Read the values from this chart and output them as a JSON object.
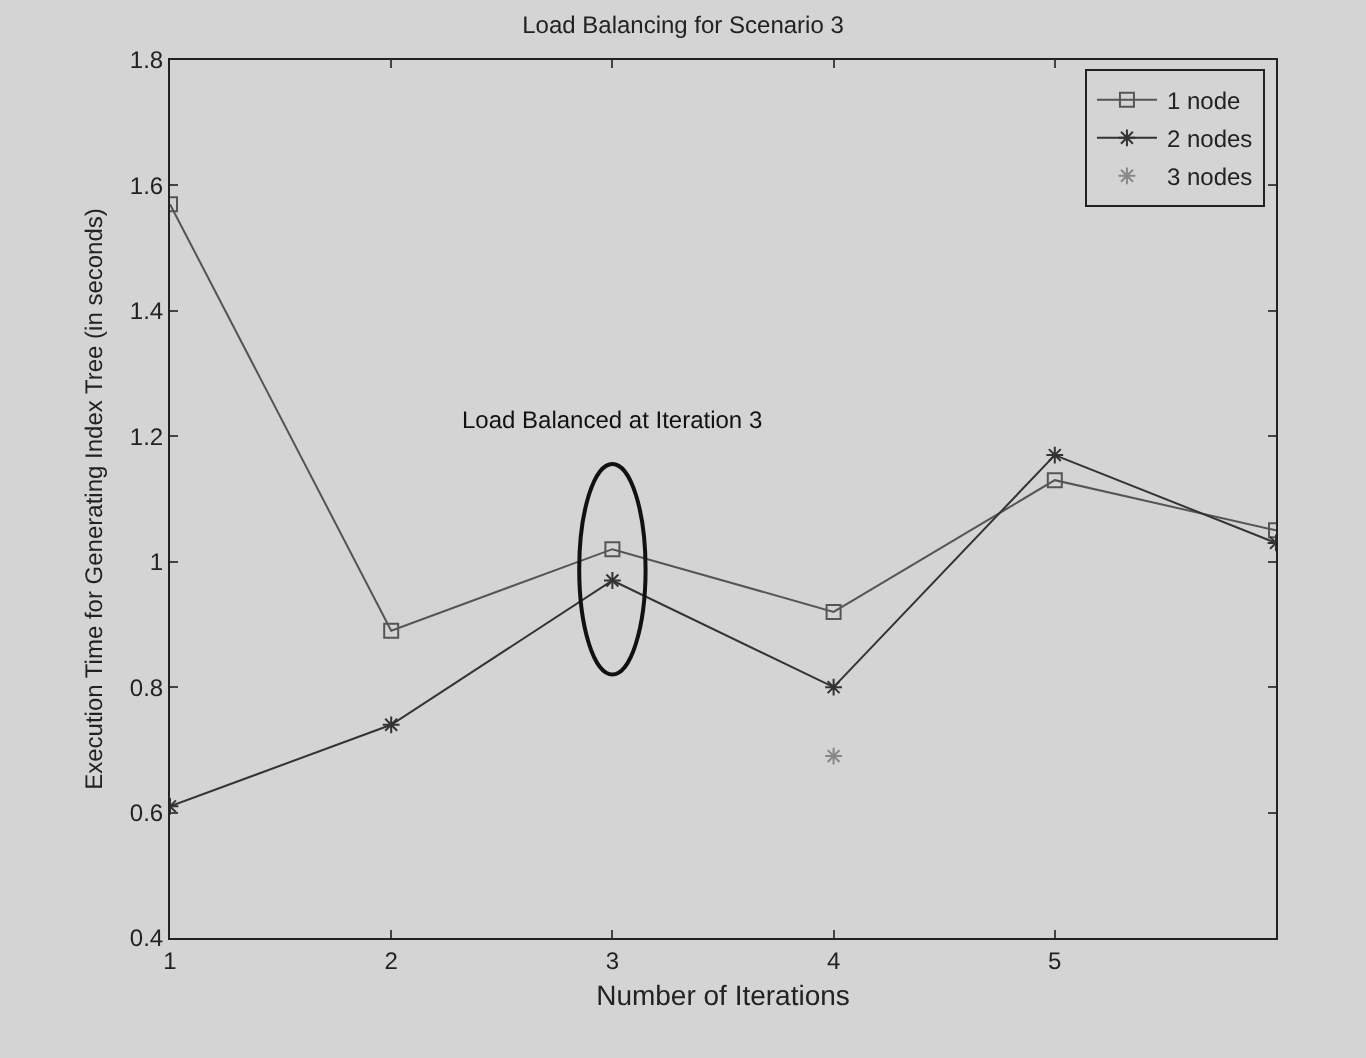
{
  "chart_data": {
    "type": "line",
    "title": "Load Balancing for Scenario 3",
    "xlabel": "Number of Iterations",
    "ylabel": "Execution Time for Generating Index Tree (in seconds)",
    "x": [
      1,
      2,
      3,
      4,
      5,
      6
    ],
    "series": [
      {
        "name": "1 node",
        "color": "#555555",
        "marker": "square",
        "values": [
          1.57,
          0.89,
          1.02,
          0.92,
          1.13,
          1.05
        ]
      },
      {
        "name": "2 nodes",
        "color": "#333333",
        "marker": "cross",
        "values": [
          0.61,
          0.74,
          0.97,
          0.8,
          1.17,
          1.03
        ]
      },
      {
        "name": "3 nodes",
        "color": "#888888",
        "marker": "cross",
        "type": "scatter",
        "values": [
          null,
          null,
          null,
          0.69,
          null,
          null
        ]
      }
    ],
    "annotations": [
      "Load Balanced at Iteration 3"
    ],
    "xlim": [
      1,
      6
    ],
    "xticks": [
      1,
      2,
      3,
      4,
      5
    ],
    "ylim": [
      0.4,
      1.8
    ],
    "yticks": [
      0.4,
      0.6,
      0.8,
      1,
      1.2,
      1.4,
      1.6,
      1.8
    ],
    "grid": false,
    "legend": "top right",
    "line_style": "solid"
  }
}
